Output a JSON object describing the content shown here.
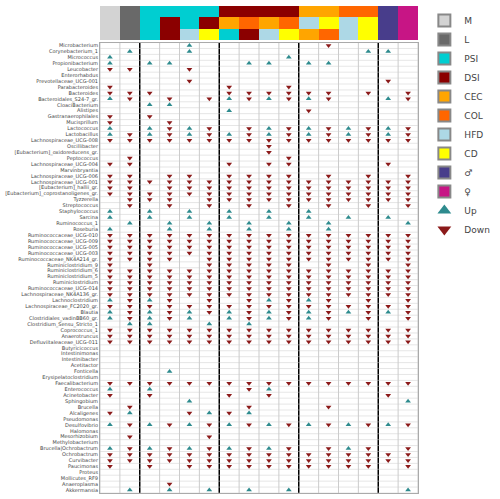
{
  "chart_data": {
    "type": "scatter",
    "categories": [
      "Microbacterium",
      "Corynebacterium_1",
      "Micrococcus",
      "Propionibacterium",
      "Leucobacter",
      "Enterorhabdus",
      "Prevotellaceae_UCG-001",
      "Parabacteroides",
      "Bacteroides",
      "Bacteroidales_S24-7_gr.",
      "CloaciBacterium",
      "Alistipes",
      "Gastranaerophilales",
      "Mucisprillum",
      "Lactococcus",
      "Lactobacillus",
      "Lachnospiraceae_UCG-008",
      "Oscillibacter",
      "[Eubacterium]_oxidoreducens_gr.",
      "Peptococcus",
      "Lachnospiraceae_UCG-004",
      "Marvinbryantia",
      "Lachnospiraceae_UCG-006",
      "Lachnospiraceae_UCG-001",
      "[Eubacterium]_hallii_gr.",
      "[Eubacterium]_coprostanoligenes_gr.",
      "Tyzzerella",
      "Streptococcus",
      "Staphylococcus",
      "Sarcina",
      "Ruminococcus_1",
      "Roseburia",
      "Ruminococcaceae_UCG-010",
      "Ruminococcaceae_UCG-009",
      "Ruminococcaceae_UCG-005",
      "Ruminococcaceae_UCG-003",
      "Ruminococcaceae_NK4A214_gr.",
      "Ruminiclostridium_9",
      "Ruminiclostridium_6",
      "Ruminiclostridium_5",
      "Ruminiclostridium",
      "Ruminococcaceae_UCG-014",
      "Lachnospiraceae_NK4A136_gr.",
      "Lachnoclostridium",
      "Lachnospiraceae_FC2020_gr.",
      "Blautia",
      "Clostridiales_vadinBB60_gr.",
      "Clostridium_Sensu_Stricto_1",
      "Coprococcus_1",
      "Anaerotruncus",
      "Defluviitaleaceae_UCG-011",
      "Butyricicoccus",
      "Intestinimonas",
      "Intestinibacter",
      "Acetitactor",
      "Fonticella",
      "Erysipelatoclostridium",
      "Faecalibacterium",
      "Enterococcus",
      "Acinetobacter",
      "Sphingobium",
      "Brucella",
      "Alcaligenes",
      "Pseudomonas",
      "Desulfovibrio",
      "Halomonas",
      "Mesorhizobium",
      "Methylobacterium",
      "Brucella|Ochrobactrum",
      "Ochrobactrum",
      "Curvibacter",
      "Paucimonas",
      "Proteus",
      "Mollicutes_RF9",
      "Anaeroplasma",
      "Akkermansia"
    ],
    "cells": [
      [
        0,
        0,
        0,
        0,
        1,
        0,
        0,
        0,
        0,
        0,
        0,
        -1,
        0,
        0,
        0,
        0
      ],
      [
        0,
        1,
        0,
        0,
        1,
        0,
        0,
        0,
        0,
        0,
        0,
        0,
        0,
        1,
        1,
        0
      ],
      [
        1,
        0,
        0,
        0,
        0,
        0,
        0,
        0,
        0,
        1,
        0,
        0,
        0,
        0,
        0,
        0
      ],
      [
        1,
        0,
        1,
        1,
        0,
        0,
        0,
        1,
        1,
        0,
        1,
        1,
        0,
        0,
        0,
        0
      ],
      [
        -1,
        -1,
        0,
        0,
        -1,
        0,
        0,
        0,
        0,
        0,
        0,
        0,
        0,
        0,
        0,
        0
      ],
      [
        0,
        0,
        0,
        0,
        0,
        0,
        0,
        0,
        0,
        0,
        0,
        0,
        0,
        0,
        0,
        0
      ],
      [
        0,
        0,
        0,
        0,
        -1,
        0,
        0,
        0,
        0,
        0,
        0,
        0,
        0,
        0,
        -1,
        0
      ],
      [
        -1,
        0,
        0,
        0,
        0,
        0,
        -1,
        0,
        0,
        -1,
        0,
        0,
        0,
        0,
        0,
        0
      ],
      [
        -1,
        -1,
        -1,
        0,
        0,
        0,
        -1,
        -1,
        -1,
        -1,
        -1,
        -1,
        0,
        -1,
        0,
        -1
      ],
      [
        1,
        -1,
        0,
        -1,
        0,
        -1,
        1,
        -1,
        1,
        -1,
        1,
        -1,
        0,
        0,
        1,
        -1
      ],
      [
        0,
        0,
        1,
        1,
        0,
        0,
        0,
        0,
        0,
        0,
        0,
        0,
        0,
        0,
        0,
        0
      ],
      [
        0,
        0,
        0,
        0,
        0,
        0,
        1,
        0,
        0,
        0,
        -1,
        0,
        0,
        0,
        0,
        0
      ],
      [
        -1,
        0,
        -1,
        0,
        0,
        0,
        0,
        0,
        0,
        0,
        0,
        0,
        0,
        0,
        0,
        0
      ],
      [
        -1,
        0,
        0,
        -1,
        0,
        0,
        0,
        0,
        0,
        0,
        0,
        0,
        0,
        0,
        0,
        0
      ],
      [
        1,
        0,
        1,
        -1,
        1,
        -1,
        0,
        -1,
        1,
        -1,
        1,
        -1,
        1,
        -1,
        1,
        -1
      ],
      [
        1,
        -1,
        1,
        -1,
        1,
        -1,
        1,
        -1,
        1,
        -1,
        1,
        -1,
        1,
        -1,
        1,
        -1
      ],
      [
        -1,
        -1,
        -1,
        -1,
        -1,
        -1,
        -1,
        -1,
        -1,
        -1,
        -1,
        -1,
        -1,
        -1,
        -1,
        -1
      ],
      [
        0,
        0,
        0,
        0,
        0,
        0,
        0,
        0,
        -1,
        0,
        0,
        0,
        0,
        0,
        0,
        0
      ],
      [
        0,
        0,
        0,
        0,
        0,
        0,
        0,
        0,
        -1,
        0,
        0,
        0,
        0,
        0,
        0,
        0
      ],
      [
        0,
        -1,
        0,
        0,
        0,
        0,
        0,
        0,
        0,
        -1,
        0,
        0,
        0,
        0,
        0,
        0
      ],
      [
        -1,
        -1,
        0,
        0,
        0,
        0,
        -1,
        0,
        -1,
        -1,
        0,
        0,
        0,
        0,
        -1,
        0
      ],
      [
        0,
        0,
        0,
        0,
        0,
        0,
        0,
        0,
        0,
        0,
        0,
        0,
        0,
        0,
        0,
        0
      ],
      [
        -1,
        -1,
        0,
        -1,
        -1,
        0,
        -1,
        -1,
        -1,
        -1,
        0,
        -1,
        0,
        -1,
        0,
        -1
      ],
      [
        -1,
        -1,
        -1,
        -1,
        -1,
        -1,
        -1,
        -1,
        -1,
        -1,
        -1,
        -1,
        -1,
        -1,
        -1,
        -1
      ],
      [
        -1,
        -1,
        0,
        -1,
        -1,
        -1,
        -1,
        -1,
        -1,
        -1,
        -1,
        -1,
        -1,
        -1,
        -1,
        -1
      ],
      [
        -1,
        -1,
        -1,
        -1,
        -1,
        -1,
        -1,
        -1,
        -1,
        -1,
        -1,
        -1,
        -1,
        -1,
        -1,
        -1
      ],
      [
        0,
        -1,
        -1,
        -1,
        0,
        -1,
        -1,
        -1,
        -1,
        -1,
        -1,
        -1,
        -1,
        -1,
        -1,
        -1
      ],
      [
        0,
        -1,
        0,
        -1,
        0,
        -1,
        0,
        -1,
        0,
        -1,
        0,
        -1,
        0,
        -1,
        0,
        -1
      ],
      [
        1,
        0,
        1,
        0,
        1,
        0,
        1,
        0,
        1,
        0,
        1,
        0,
        0,
        0,
        0,
        0
      ],
      [
        1,
        0,
        1,
        0,
        1,
        0,
        1,
        0,
        1,
        0,
        1,
        0,
        1,
        0,
        1,
        0
      ],
      [
        0,
        1,
        0,
        1,
        0,
        1,
        0,
        1,
        0,
        1,
        0,
        1,
        0,
        0,
        0,
        1
      ],
      [
        1,
        0,
        0,
        1,
        0,
        1,
        0,
        1,
        0,
        1,
        0,
        1,
        0,
        0,
        0,
        0
      ],
      [
        -1,
        -1,
        -1,
        -1,
        -1,
        -1,
        -1,
        -1,
        -1,
        -1,
        -1,
        -1,
        -1,
        -1,
        -1,
        -1
      ],
      [
        -1,
        -1,
        -1,
        -1,
        -1,
        -1,
        -1,
        -1,
        -1,
        -1,
        -1,
        -1,
        -1,
        -1,
        -1,
        -1
      ],
      [
        -1,
        -1,
        -1,
        -1,
        -1,
        -1,
        -1,
        -1,
        -1,
        -1,
        -1,
        -1,
        -1,
        -1,
        -1,
        -1
      ],
      [
        -1,
        -1,
        -1,
        -1,
        -1,
        -1,
        -1,
        -1,
        -1,
        -1,
        -1,
        -1,
        -1,
        -1,
        -1,
        -1
      ],
      [
        -1,
        -1,
        -1,
        -1,
        0,
        -1,
        -1,
        -1,
        -1,
        -1,
        -1,
        -1,
        -1,
        -1,
        -1,
        -1
      ],
      [
        -1,
        0,
        -1,
        0,
        0,
        -1,
        -1,
        -1,
        -1,
        -1,
        0,
        -1,
        0,
        -1,
        0,
        -1
      ],
      [
        -1,
        -1,
        -1,
        -1,
        -1,
        -1,
        -1,
        -1,
        -1,
        -1,
        -1,
        -1,
        -1,
        -1,
        -1,
        -1
      ],
      [
        -1,
        -1,
        -1,
        -1,
        -1,
        -1,
        -1,
        -1,
        -1,
        -1,
        -1,
        -1,
        -1,
        -1,
        -1,
        -1
      ],
      [
        -1,
        -1,
        -1,
        -1,
        -1,
        -1,
        -1,
        -1,
        -1,
        -1,
        -1,
        -1,
        -1,
        -1,
        -1,
        -1
      ],
      [
        -1,
        -1,
        -1,
        -1,
        -1,
        -1,
        -1,
        -1,
        -1,
        -1,
        -1,
        -1,
        -1,
        -1,
        -1,
        -1
      ],
      [
        -1,
        -1,
        -1,
        -1,
        -1,
        -1,
        -1,
        -1,
        -1,
        -1,
        -1,
        -1,
        -1,
        -1,
        -1,
        -1
      ],
      [
        1,
        -1,
        1,
        -1,
        0,
        -1,
        0,
        -1,
        1,
        -1,
        1,
        -1,
        0,
        -1,
        0,
        -1
      ],
      [
        -1,
        -1,
        -1,
        -1,
        -1,
        -1,
        -1,
        -1,
        -1,
        -1,
        -1,
        -1,
        -1,
        -1,
        -1,
        -1
      ],
      [
        1,
        -1,
        1,
        -1,
        1,
        -1,
        1,
        -1,
        1,
        -1,
        1,
        -1,
        1,
        -1,
        1,
        -1
      ],
      [
        1,
        -1,
        1,
        -1,
        1,
        0,
        1,
        -1,
        1,
        -1,
        1,
        -1,
        0,
        -1,
        0,
        -1
      ],
      [
        0,
        1,
        1,
        0,
        0,
        1,
        0,
        1,
        0,
        0,
        0,
        0,
        0,
        0,
        0,
        0
      ],
      [
        -1,
        -1,
        -1,
        -1,
        -1,
        -1,
        -1,
        -1,
        -1,
        -1,
        -1,
        -1,
        -1,
        -1,
        -1,
        -1
      ],
      [
        -1,
        -1,
        -1,
        -1,
        -1,
        -1,
        -1,
        -1,
        -1,
        -1,
        -1,
        -1,
        -1,
        -1,
        -1,
        -1
      ],
      [
        -1,
        -1,
        -1,
        -1,
        -1,
        -1,
        -1,
        -1,
        -1,
        -1,
        -1,
        -1,
        -1,
        -1,
        -1,
        -1
      ],
      [
        0,
        0,
        0,
        0,
        0,
        0,
        0,
        0,
        0,
        0,
        0,
        0,
        0,
        0,
        0,
        0
      ],
      [
        0,
        0,
        0,
        0,
        0,
        0,
        0,
        0,
        0,
        0,
        0,
        0,
        0,
        0,
        0,
        0
      ],
      [
        0,
        0,
        0,
        0,
        0,
        0,
        0,
        0,
        0,
        0,
        0,
        0,
        0,
        0,
        0,
        0
      ],
      [
        0,
        0,
        0,
        0,
        0,
        0,
        0,
        0,
        0,
        0,
        0,
        0,
        0,
        0,
        0,
        0
      ],
      [
        0,
        0,
        0,
        1,
        0,
        0,
        0,
        0,
        0,
        0,
        0,
        0,
        0,
        0,
        0,
        0
      ],
      [
        0,
        0,
        0,
        0,
        0,
        0,
        0,
        0,
        0,
        0,
        0,
        0,
        0,
        0,
        0,
        0
      ],
      [
        -1,
        -1,
        -1,
        -1,
        -1,
        -1,
        -1,
        -1,
        -1,
        -1,
        -1,
        -1,
        -1,
        -1,
        -1,
        -1
      ],
      [
        1,
        0,
        1,
        0,
        0,
        0,
        0,
        -1,
        1,
        0,
        0,
        0,
        0,
        0,
        0,
        0
      ],
      [
        -1,
        0,
        -1,
        0,
        0,
        0,
        -1,
        0,
        -1,
        0,
        0,
        0,
        0,
        0,
        -1,
        0
      ],
      [
        0,
        0,
        0,
        0,
        1,
        0,
        0,
        0,
        0,
        0,
        0,
        0,
        0,
        0,
        0,
        1
      ],
      [
        0,
        -1,
        0,
        0,
        0,
        0,
        0,
        -1,
        0,
        0,
        0,
        -1,
        0,
        0,
        0,
        0
      ],
      [
        -1,
        1,
        0,
        0,
        -1,
        1,
        -1,
        1,
        0,
        0,
        0,
        0,
        0,
        0,
        0,
        0
      ],
      [
        0,
        0,
        0,
        0,
        0,
        0,
        0,
        0,
        0,
        0,
        0,
        0,
        0,
        0,
        0,
        0
      ],
      [
        1,
        -1,
        1,
        -1,
        1,
        -1,
        1,
        -1,
        1,
        -1,
        1,
        -1,
        1,
        -1,
        1,
        -1
      ],
      [
        0,
        0,
        0,
        0,
        0,
        0,
        0,
        0,
        0,
        0,
        0,
        0,
        0,
        0,
        0,
        0
      ],
      [
        0,
        -1,
        0,
        0,
        0,
        -1,
        0,
        0,
        0,
        0,
        0,
        0,
        0,
        0,
        0,
        0
      ],
      [
        0,
        0,
        0,
        0,
        0,
        0,
        0,
        0,
        0,
        0,
        0,
        0,
        0,
        0,
        0,
        0
      ],
      [
        1,
        -1,
        1,
        -1,
        1,
        -1,
        1,
        -1,
        1,
        -1,
        0,
        -1,
        1,
        -1,
        0,
        -1
      ],
      [
        -1,
        -1,
        -1,
        -1,
        -1,
        -1,
        -1,
        -1,
        -1,
        -1,
        -1,
        -1,
        -1,
        -1,
        -1,
        -1
      ],
      [
        -1,
        -1,
        -1,
        -1,
        -1,
        -1,
        -1,
        -1,
        -1,
        -1,
        -1,
        -1,
        -1,
        -1,
        -1,
        -1
      ],
      [
        -1,
        0,
        -1,
        0,
        -1,
        -1,
        -1,
        -1,
        -1,
        -1,
        -1,
        -1,
        -1,
        -1,
        0,
        -1
      ],
      [
        0,
        0,
        0,
        0,
        0,
        0,
        0,
        0,
        0,
        0,
        0,
        0,
        0,
        0,
        0,
        0
      ],
      [
        0,
        0,
        0,
        0,
        0,
        0,
        0,
        0,
        0,
        0,
        0,
        0,
        0,
        0,
        0,
        0
      ],
      [
        0,
        0,
        0,
        -1,
        0,
        0,
        0,
        0,
        0,
        0,
        0,
        0,
        0,
        0,
        0,
        0
      ],
      [
        0,
        1,
        0,
        1,
        0,
        1,
        0,
        1,
        0,
        1,
        0,
        0,
        0,
        0,
        0,
        1
      ]
    ],
    "series": [
      {
        "name": "Up",
        "color": "#2e8b8e",
        "marker": "triangle-up"
      },
      {
        "name": "Down",
        "color": "#8b1a1a",
        "marker": "triangle-down"
      }
    ],
    "groups": [
      {
        "name": "M",
        "color": "#d3d3d3"
      },
      {
        "name": "L",
        "color": "#696969"
      },
      {
        "name": "PSI",
        "color": "#00ced1"
      },
      {
        "name": "DSI",
        "color": "#8b0000"
      },
      {
        "name": "CEC",
        "color": "#ffa500"
      },
      {
        "name": "COL",
        "color": "#ff6600"
      },
      {
        "name": "HFD",
        "color": "#add8e6"
      },
      {
        "name": "CD",
        "color": "#ffff00"
      },
      {
        "name": "♂",
        "color": "#483d8b"
      },
      {
        "name": "♀",
        "color": "#c71585"
      }
    ],
    "column_bars": [
      [
        "#d3d3d3",
        "#696969",
        "#00ced1",
        "#00ced1",
        "#00ced1",
        "#00ced1",
        "#8b0000",
        "#8b0000",
        "#8b0000",
        "#8b0000",
        "#ffa500",
        "#ffa500",
        "#ff6600",
        "#ff6600",
        "#483d8b",
        "#c71585"
      ],
      [
        "#d3d3d3",
        "#696969",
        "#00ced1",
        "#8b0000",
        "#00ced1",
        "#8b0000",
        "#ffa500",
        "#ff6600",
        "#ffa500",
        "#ff6600",
        "#add8e6",
        "#ffff00",
        "#add8e6",
        "#ffff00",
        "#483d8b",
        "#c71585"
      ],
      [
        "#d3d3d3",
        "#696969",
        "#00ced1",
        "#8b0000",
        "#add8e6",
        "#ffff00",
        "#00ced1",
        "#8b0000",
        "#add8e6",
        "#ffff00",
        "#ffa500",
        "#ff6600",
        "#add8e6",
        "#ffff00",
        "#483d8b",
        "#c71585"
      ]
    ],
    "dividers": [
      2,
      6,
      10,
      14
    ],
    "xlim": [
      -0.5,
      15.5
    ],
    "xticks": [],
    "grid": true,
    "legend": "right",
    "tick_labels": "y"
  }
}
